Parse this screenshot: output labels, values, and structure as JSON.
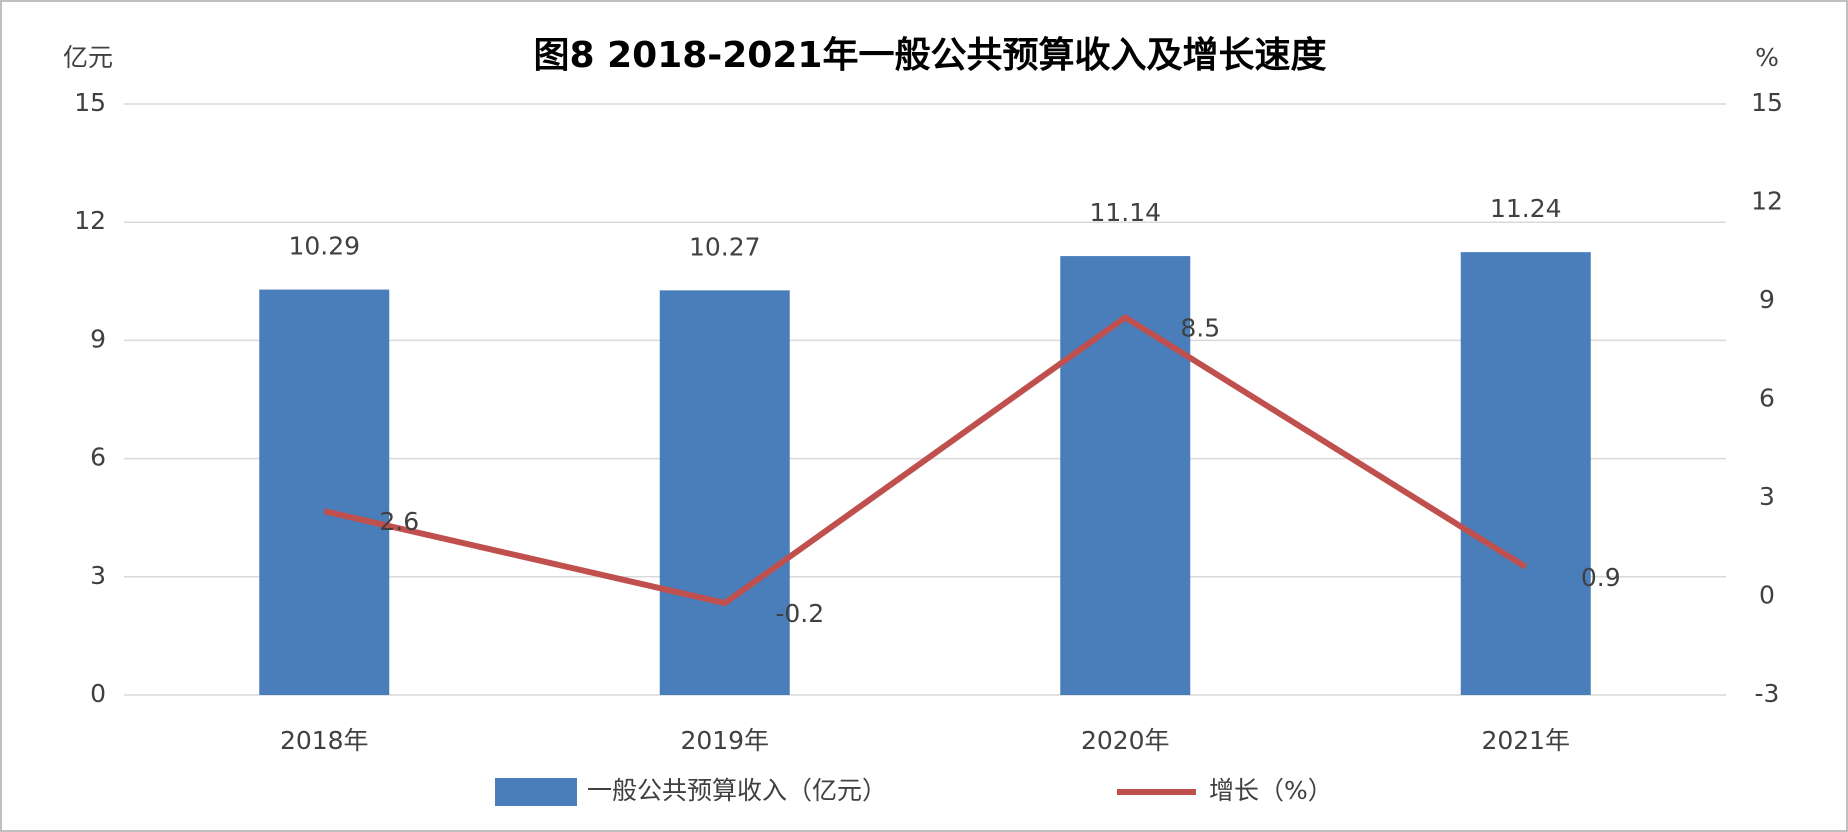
{
  "chart_data": {
    "type": "combo",
    "title": "图8 2018-2021年一般公共预算收入及增长速度",
    "y_label": "亿元",
    "y2_label": "%",
    "categories": [
      "2018年",
      "2019年",
      "2020年",
      "2021年"
    ],
    "series": [
      {
        "name": "一般公共预算收入（亿元）",
        "type": "bar",
        "color": "#4a7ebb",
        "values": [
          10.29,
          10.27,
          11.14,
          11.24
        ]
      },
      {
        "name": "增长（%）",
        "type": "line",
        "axis": "y2",
        "color": "#c0504d",
        "values": [
          2.6,
          -0.2,
          8.5,
          0.9
        ]
      }
    ],
    "ylim": [
      0,
      15
    ],
    "yticks": [
      0,
      3,
      6,
      9,
      12,
      15
    ],
    "y2lim": [
      -3,
      15
    ],
    "y2ticks": [
      -3,
      0,
      3,
      6,
      9,
      12,
      15
    ],
    "grid": true,
    "legend": "bottom"
  }
}
